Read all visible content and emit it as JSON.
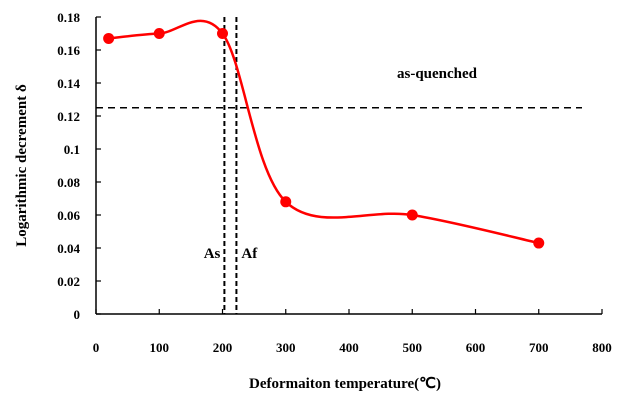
{
  "chart_data": {
    "type": "line",
    "xlabel": "Deformaiton temperature(℃)",
    "ylabel": "Logarithmic decrement δ",
    "xlim": [
      0,
      800
    ],
    "ylim": [
      0,
      0.18
    ],
    "x_ticks": [
      "0",
      "100",
      "200",
      "300",
      "400",
      "500",
      "600",
      "700",
      "800"
    ],
    "y_ticks": [
      "0",
      "0.02",
      "0.04",
      "0.06",
      "0.08",
      "0.1",
      "0.12",
      "0.14",
      "0.16",
      "0.18"
    ],
    "grid": false,
    "series": [
      {
        "color": "#ff0000",
        "smooth": true,
        "x": [
          20,
          100,
          200,
          300,
          500,
          700
        ],
        "y": [
          0.167,
          0.17,
          0.17,
          0.068,
          0.06,
          0.043
        ]
      }
    ],
    "reference_lines": [
      {
        "orientation": "horizontal",
        "value": 0.125,
        "label": "as-quenched"
      },
      {
        "orientation": "vertical",
        "value": 203,
        "label": "As"
      },
      {
        "orientation": "vertical",
        "value": 222,
        "label": "Af"
      }
    ]
  }
}
